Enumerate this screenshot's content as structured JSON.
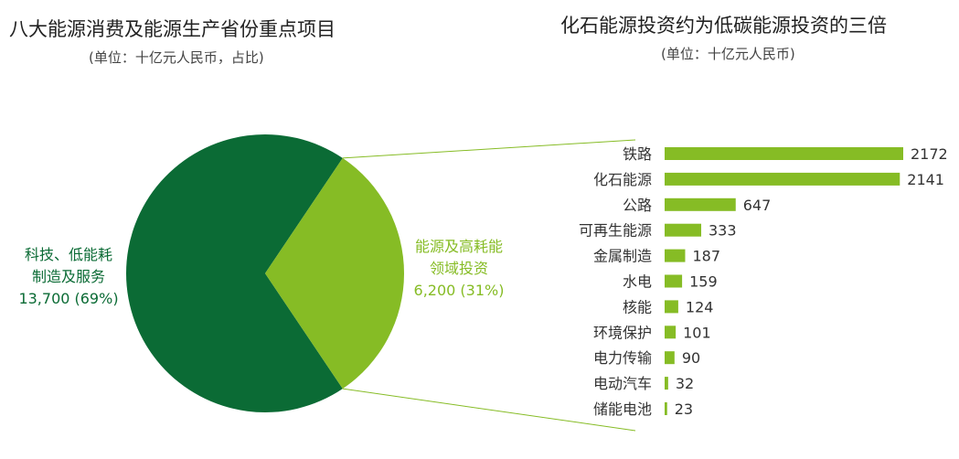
{
  "colors": {
    "dark_green": "#0b6b35",
    "light_green": "#86bc25",
    "text": "#333333",
    "line": "#86bc25"
  },
  "chart_data": [
    {
      "type": "pie",
      "title": "八大能源消费及能源生产省份重点项目",
      "subtitle": "(单位：十亿元人民币，占比)",
      "slices": [
        {
          "label_line1": "科技、低能耗",
          "label_line2": "制造及服务",
          "value_text": "13,700 (69%)",
          "value": 13700,
          "percent": 69,
          "color": "#0b6b35"
        },
        {
          "label_line1": "能源及高耗能",
          "label_line2": "领域投资",
          "value_text": "6,200 (31%)",
          "value": 6200,
          "percent": 31,
          "color": "#86bc25"
        }
      ]
    },
    {
      "type": "bar",
      "orientation": "horizontal",
      "title": "化石能源投资约为低碳能源投资的三倍",
      "subtitle": "(单位：十亿元人民币)",
      "categories": [
        "铁路",
        "化石能源",
        "公路",
        "可再生能源",
        "金属制造",
        "水电",
        "核能",
        "环境保护",
        "电力传输",
        "电动汽车",
        "储能电池"
      ],
      "values": [
        2172,
        2141,
        647,
        333,
        187,
        159,
        124,
        101,
        90,
        32,
        23
      ],
      "xlim": [
        0,
        2172
      ],
      "grid": false,
      "bar_color": "#86bc25"
    }
  ]
}
